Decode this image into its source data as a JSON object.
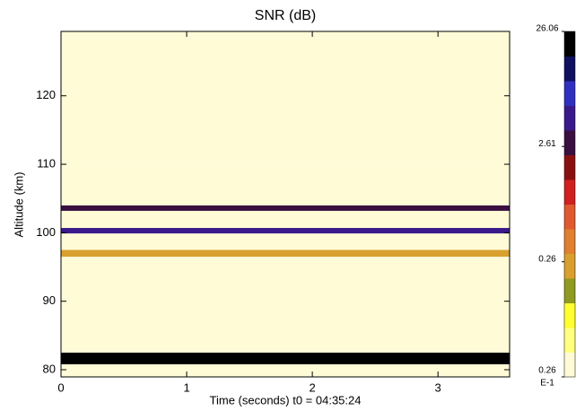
{
  "chart_data": {
    "type": "heatmap",
    "title": "SNR (dB)",
    "x_label": "Time (seconds) t0 = 04:35:24",
    "y_label": "Altitude (km)",
    "xlim": [
      0,
      3.57
    ],
    "xticks": [
      0,
      1,
      2,
      3
    ],
    "ylim": [
      78.95,
      129.4
    ],
    "yticks": [
      80,
      90,
      100,
      110,
      120
    ],
    "ybins": [
      78.95,
      80.8,
      82.5,
      90.0,
      96.5,
      97.5,
      99.9,
      100.7,
      103.2,
      104.0,
      110.5,
      129.4
    ],
    "values": [
      0.03,
      20,
      0.03,
      0.04,
      0.3,
      0.04,
      5,
      0.04,
      3,
      0.04,
      0.03
    ],
    "colorbar": {
      "log": true,
      "lim": [
        0.026,
        26.06
      ],
      "ticks": [
        26.06,
        2.61,
        0.26,
        {
          "value": 0.026,
          "label": "0.26"
        }
      ],
      "exponent_label": "E-1",
      "colors": [
        "#fffbd6",
        "#ffff80",
        "#ffff30",
        "#8f9a20",
        "#d9a030",
        "#e08030",
        "#e05a30",
        "#d02020",
        "#8a1010",
        "#3a1040",
        "#3a1a8a",
        "#3030c0",
        "#101060",
        "#000000"
      ]
    }
  }
}
